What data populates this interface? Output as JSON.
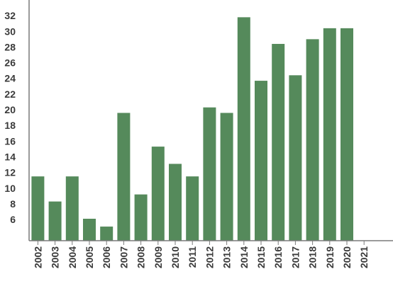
{
  "chart_data": {
    "type": "bar",
    "title": "",
    "xlabel": "",
    "ylabel": "",
    "categories": [
      "2002",
      "2003",
      "2004",
      "2005",
      "2006",
      "2007",
      "2008",
      "2009",
      "2010",
      "2011",
      "2012",
      "2013",
      "2014",
      "2015",
      "2016",
      "2017",
      "2018",
      "2019",
      "2020",
      "2021"
    ],
    "values": [
      11.5,
      8.3,
      11.5,
      6.1,
      5.1,
      19.6,
      9.2,
      15.3,
      13.1,
      11.5,
      20.3,
      19.6,
      31.8,
      23.7,
      28.4,
      24.4,
      29.0,
      30.4,
      30.4,
      null
    ],
    "ylim": [
      3.3,
      34
    ],
    "yticks": [
      6,
      8,
      10,
      12,
      14,
      16,
      18,
      20,
      22,
      24,
      26,
      28,
      30,
      32
    ],
    "grid": false,
    "legend": "none",
    "colors": {
      "bar": "#558a5b",
      "axis": "#7a7a7a",
      "text": "#3a3a3a"
    }
  }
}
